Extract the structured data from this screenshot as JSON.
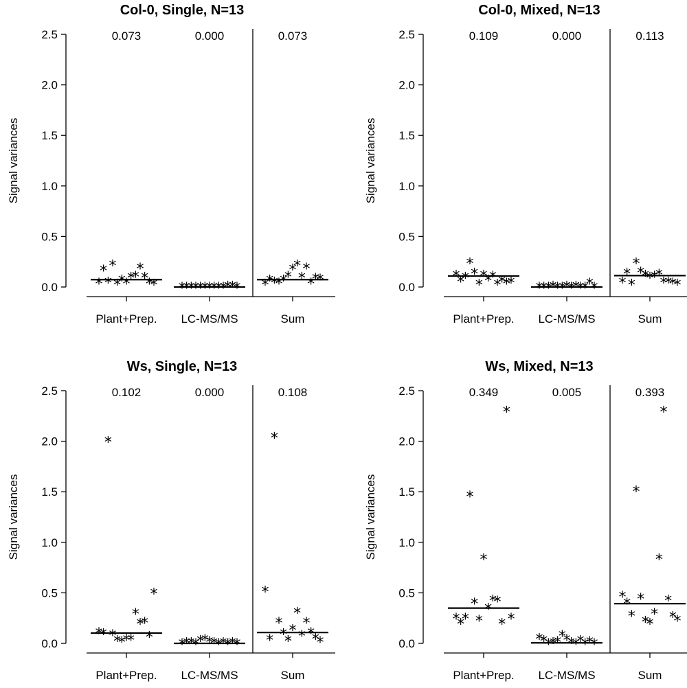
{
  "chart_data": [
    {
      "type": "scatter",
      "title": "Col-0, Single, N=13",
      "ylabel": "Signal variances",
      "ylim": [
        0,
        2.5
      ],
      "yticks": [
        "0.0",
        "0.5",
        "1.0",
        "1.5",
        "2.0",
        "2.5"
      ],
      "categories": [
        "Plant+Prep.",
        "LC-MS/MS",
        "Sum"
      ],
      "means": [
        0.073,
        0.0,
        0.073
      ],
      "mean_labels": [
        "0.073",
        "0.000",
        "0.073"
      ],
      "series": [
        {
          "name": "Plant+Prep.",
          "values": [
            0.04,
            0.17,
            0.05,
            0.22,
            0.03,
            0.07,
            0.04,
            0.1,
            0.11,
            0.19,
            0.1,
            0.04,
            0.03
          ]
        },
        {
          "name": "LC-MS/MS",
          "values": [
            0.0,
            0.0,
            0.0,
            0.0,
            0.0,
            0.0,
            0.0,
            0.0,
            0.0,
            0.0,
            0.01,
            0.01,
            0.0
          ]
        },
        {
          "name": "Sum",
          "values": [
            0.03,
            0.07,
            0.05,
            0.04,
            0.07,
            0.11,
            0.18,
            0.22,
            0.1,
            0.19,
            0.04,
            0.09,
            0.08
          ]
        }
      ]
    },
    {
      "type": "scatter",
      "title": "Col-0, Mixed, N=13",
      "ylabel": "Signal variances",
      "ylim": [
        0,
        2.5
      ],
      "yticks": [
        "0.0",
        "0.5",
        "1.0",
        "1.5",
        "2.0",
        "2.5"
      ],
      "categories": [
        "Plant+Prep.",
        "LC-MS/MS",
        "Sum"
      ],
      "means": [
        0.109,
        0.0,
        0.113
      ],
      "mean_labels": [
        "0.109",
        "0.000",
        "0.113"
      ],
      "series": [
        {
          "name": "Plant+Prep.",
          "values": [
            0.12,
            0.06,
            0.1,
            0.24,
            0.14,
            0.03,
            0.12,
            0.07,
            0.11,
            0.03,
            0.06,
            0.04,
            0.05
          ]
        },
        {
          "name": "LC-MS/MS",
          "values": [
            0.0,
            0.0,
            0.0,
            0.01,
            0.0,
            0.0,
            0.01,
            0.0,
            0.01,
            0.0,
            0.0,
            0.04,
            0.0
          ]
        },
        {
          "name": "Sum",
          "values": [
            0.05,
            0.14,
            0.03,
            0.24,
            0.15,
            0.12,
            0.1,
            0.11,
            0.13,
            0.05,
            0.05,
            0.04,
            0.03
          ]
        }
      ]
    },
    {
      "type": "scatter",
      "title": "Ws, Single, N=13",
      "ylabel": "Signal variances",
      "ylim": [
        0,
        2.5
      ],
      "yticks": [
        "0.0",
        "0.5",
        "1.0",
        "1.5",
        "2.0",
        "2.5"
      ],
      "categories": [
        "Plant+Prep.",
        "LC-MS/MS",
        "Sum"
      ],
      "means": [
        0.102,
        0.0,
        0.108
      ],
      "mean_labels": [
        "0.102",
        "0.000",
        "0.108"
      ],
      "series": [
        {
          "name": "Plant+Prep.",
          "values": [
            0.11,
            0.1,
            2.0,
            0.09,
            0.03,
            0.02,
            0.04,
            0.04,
            0.3,
            0.2,
            0.21,
            0.07,
            0.5
          ]
        },
        {
          "name": "LC-MS/MS",
          "values": [
            0.0,
            0.01,
            0.01,
            0.0,
            0.03,
            0.04,
            0.02,
            0.01,
            0.0,
            0.01,
            0.0,
            0.01,
            0.0
          ]
        },
        {
          "name": "Sum",
          "values": [
            0.52,
            0.04,
            2.04,
            0.21,
            0.1,
            0.03,
            0.14,
            0.31,
            0.08,
            0.21,
            0.11,
            0.05,
            0.02
          ]
        }
      ]
    },
    {
      "type": "scatter",
      "title": "Ws, Mixed, N=13",
      "ylabel": "Signal variances",
      "ylim": [
        0,
        2.5
      ],
      "yticks": [
        "0.0",
        "0.5",
        "1.0",
        "1.5",
        "2.0",
        "2.5"
      ],
      "categories": [
        "Plant+Prep.",
        "LC-MS/MS",
        "Sum"
      ],
      "means": [
        0.349,
        0.005,
        0.393
      ],
      "mean_labels": [
        "0.349",
        "0.005",
        "0.393"
      ],
      "series": [
        {
          "name": "Plant+Prep.",
          "values": [
            0.25,
            0.2,
            0.25,
            1.46,
            0.4,
            0.23,
            0.84,
            0.35,
            0.43,
            0.42,
            0.2,
            2.3,
            0.25
          ]
        },
        {
          "name": "LC-MS/MS",
          "values": [
            0.05,
            0.03,
            0.0,
            0.01,
            0.02,
            0.08,
            0.04,
            0.01,
            0.0,
            0.03,
            0.0,
            0.02,
            0.0
          ]
        },
        {
          "name": "Sum",
          "values": [
            0.47,
            0.4,
            0.28,
            1.51,
            0.45,
            0.22,
            0.2,
            0.3,
            0.84,
            2.3,
            0.43,
            0.27,
            0.23
          ]
        }
      ]
    }
  ]
}
